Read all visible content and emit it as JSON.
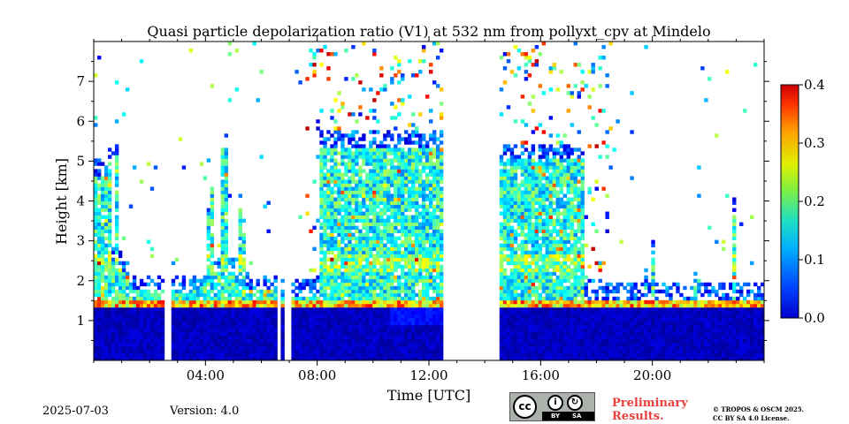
{
  "chart_data": {
    "type": "heatmap",
    "title": "Quasi particle depolarization ratio (V1) at 532 nm from pollyxt_cpv at Mindelo",
    "xlabel": "Time [UTC]",
    "ylabel": "Height [km]",
    "x_ticks": [
      "04:00",
      "08:00",
      "12:00",
      "16:00",
      "20:00"
    ],
    "x_tick_hours": [
      4,
      8,
      12,
      16,
      20
    ],
    "y_ticks": [
      "1",
      "2",
      "3",
      "4",
      "5",
      "6",
      "7"
    ],
    "y_tick_values": [
      1,
      2,
      3,
      4,
      5,
      6,
      7
    ],
    "xlim": [
      0,
      24
    ],
    "ylim": [
      0,
      8
    ],
    "colorbar": {
      "ticks": [
        "0.0",
        "0.1",
        "0.2",
        "0.3",
        "0.4"
      ],
      "tick_values": [
        0.0,
        0.1,
        0.2,
        0.3,
        0.4
      ],
      "range": [
        0.0,
        0.4
      ],
      "colormap": "jet"
    },
    "data_gaps_hours": [
      [
        2.5,
        2.7
      ],
      [
        6.5,
        6.6
      ],
      [
        6.8,
        7.0
      ],
      [
        12.5,
        14.5
      ]
    ],
    "cloud_base_km": 1.3,
    "aerosol_top_km": 5.3
  },
  "footer": {
    "date": "2025-07-03",
    "version": "Version: 4.0",
    "preliminary_line1": "Preliminary",
    "preliminary_line2": "Results.",
    "copyright_line1": "© TROPOS & OSCM 2025.",
    "copyright_line2": "CC BY SA 4.0 License.",
    "badge_left": "BY",
    "badge_right": "SA"
  }
}
